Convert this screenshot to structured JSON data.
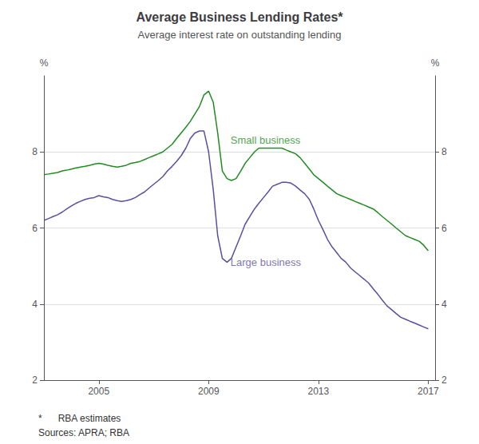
{
  "chart_data": {
    "type": "line",
    "title": "Average Business Lending Rates*",
    "subtitle": "Average interest rate on outstanding lending",
    "y_label": "%",
    "y2_label": "%",
    "footnotes": [
      "*      RBA estimates",
      "Sources: APRA; RBA"
    ],
    "grid": true,
    "legend": false,
    "xlim": [
      2003.0,
      2017.25
    ],
    "xticks": [
      2005,
      2009,
      2013,
      2017
    ],
    "ylim": [
      2,
      10
    ],
    "yticks": [
      2,
      4,
      6,
      8
    ],
    "y2lim": [
      2,
      10
    ],
    "y2ticks": [
      2,
      4,
      6,
      8
    ],
    "x": [
      2003.0,
      2003.17,
      2003.33,
      2003.5,
      2003.67,
      2003.83,
      2004.0,
      2004.17,
      2004.33,
      2004.5,
      2004.67,
      2004.83,
      2005.0,
      2005.17,
      2005.33,
      2005.5,
      2005.67,
      2005.83,
      2006.0,
      2006.17,
      2006.33,
      2006.5,
      2006.67,
      2006.83,
      2007.0,
      2007.17,
      2007.33,
      2007.5,
      2007.67,
      2007.83,
      2008.0,
      2008.17,
      2008.33,
      2008.5,
      2008.67,
      2008.83,
      2009.0,
      2009.17,
      2009.33,
      2009.5,
      2009.67,
      2009.83,
      2010.0,
      2010.17,
      2010.33,
      2010.5,
      2010.67,
      2010.83,
      2011.0,
      2011.17,
      2011.33,
      2011.5,
      2011.67,
      2011.83,
      2012.0,
      2012.17,
      2012.33,
      2012.5,
      2012.67,
      2012.83,
      2013.0,
      2013.17,
      2013.33,
      2013.5,
      2013.67,
      2013.83,
      2014.0,
      2014.17,
      2014.33,
      2014.5,
      2014.67,
      2014.83,
      2015.0,
      2015.17,
      2015.33,
      2015.5,
      2015.67,
      2015.83,
      2016.0,
      2016.17,
      2016.33,
      2016.5,
      2016.67,
      2016.83,
      2017.0
    ],
    "series": [
      {
        "name": "Small business",
        "color": "#228B22",
        "values": [
          7.4,
          7.42,
          7.44,
          7.46,
          7.5,
          7.52,
          7.55,
          7.58,
          7.6,
          7.62,
          7.65,
          7.68,
          7.7,
          7.68,
          7.65,
          7.62,
          7.6,
          7.62,
          7.65,
          7.7,
          7.72,
          7.75,
          7.8,
          7.85,
          7.9,
          7.95,
          8.0,
          8.1,
          8.2,
          8.35,
          8.5,
          8.65,
          8.8,
          9.0,
          9.2,
          9.5,
          9.6,
          9.3,
          8.5,
          7.5,
          7.3,
          7.25,
          7.3,
          7.5,
          7.7,
          7.85,
          8.0,
          8.1,
          8.1,
          8.1,
          8.1,
          8.1,
          8.1,
          8.05,
          8.0,
          7.95,
          7.85,
          7.7,
          7.55,
          7.4,
          7.3,
          7.2,
          7.1,
          7.0,
          6.9,
          6.85,
          6.8,
          6.75,
          6.7,
          6.65,
          6.6,
          6.55,
          6.5,
          6.4,
          6.3,
          6.2,
          6.1,
          6.0,
          5.9,
          5.8,
          5.75,
          5.7,
          5.65,
          5.55,
          5.4
        ]
      },
      {
        "name": "Large business",
        "color": "#5B4EA0",
        "values": [
          6.2,
          6.25,
          6.3,
          6.35,
          6.42,
          6.5,
          6.58,
          6.65,
          6.7,
          6.75,
          6.78,
          6.8,
          6.85,
          6.82,
          6.8,
          6.75,
          6.72,
          6.7,
          6.72,
          6.75,
          6.8,
          6.88,
          6.95,
          7.05,
          7.15,
          7.25,
          7.35,
          7.5,
          7.62,
          7.75,
          7.9,
          8.1,
          8.35,
          8.5,
          8.55,
          8.55,
          8.0,
          7.0,
          5.8,
          5.2,
          5.1,
          5.2,
          5.5,
          5.8,
          6.1,
          6.3,
          6.5,
          6.65,
          6.8,
          6.95,
          7.1,
          7.15,
          7.2,
          7.2,
          7.18,
          7.1,
          7.0,
          6.9,
          6.75,
          6.5,
          6.2,
          5.95,
          5.7,
          5.5,
          5.35,
          5.2,
          5.1,
          4.95,
          4.85,
          4.75,
          4.65,
          4.55,
          4.4,
          4.25,
          4.1,
          3.95,
          3.85,
          3.75,
          3.65,
          3.6,
          3.55,
          3.5,
          3.45,
          3.4,
          3.35
        ]
      }
    ],
    "annotations": [
      {
        "text": "Small business",
        "x": 2009.8,
        "y": 8.3,
        "color": "#228B22"
      },
      {
        "text": "Large business",
        "x": 2009.8,
        "y": 5.1,
        "color": "#5B4EA0"
      }
    ]
  }
}
